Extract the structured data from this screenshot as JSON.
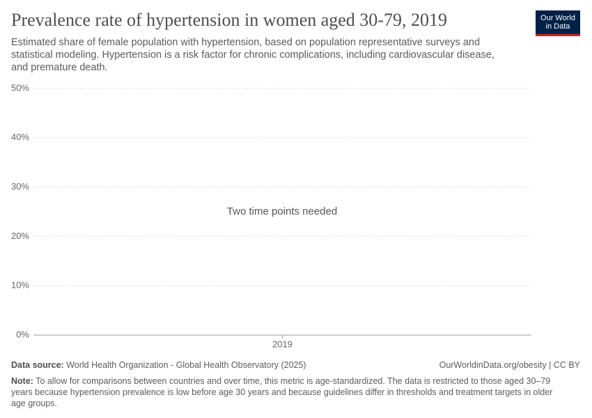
{
  "chart_data": {
    "type": "line",
    "title": "Prevalence rate of hypertension in women aged 30-79, 2019",
    "subtitle": "Estimated share of female population with hypertension, based on population representative surveys and statistical modeling. Hypertension is a risk factor for chronic complications, including cardiovascular disease, and premature death.",
    "message": "Two time points needed",
    "xticks": [
      2019
    ],
    "ylim": [
      0,
      50
    ],
    "yticks": [
      {
        "value": 0,
        "label": "0%"
      },
      {
        "value": 10,
        "label": "10%"
      },
      {
        "value": 20,
        "label": "20%"
      },
      {
        "value": 30,
        "label": "30%"
      },
      {
        "value": 40,
        "label": "40%"
      },
      {
        "value": 50,
        "label": "50%"
      }
    ],
    "grid": true
  },
  "logo": [
    "Our World",
    "in Data"
  ],
  "footer": {
    "source_label": "Data source:",
    "source": "World Health Organization - Global Health Observatory (2025)",
    "url": "OurWorldinData.org/obesity | CC BY",
    "note_label": "Note:",
    "note": "To allow for comparisons between countries and over time, this metric is age-standardized. The data is restricted to those aged 30–79 years because hypertension prevalence is low before age 30 years and because guidelines differ in thresholds and treatment targets in older age groups."
  }
}
